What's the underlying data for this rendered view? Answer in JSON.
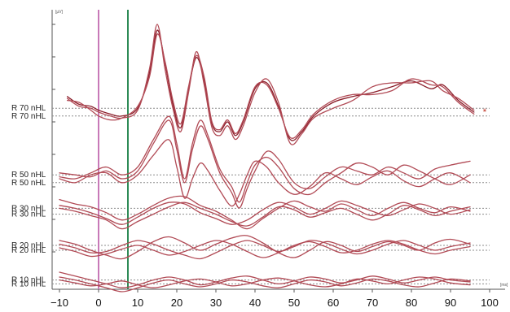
{
  "chart_data": {
    "type": "line",
    "title": "",
    "xlabel": "",
    "ylabel": "",
    "x_unit": "[ms]",
    "y_unit": "[µV]",
    "xlim": [
      -10,
      100
    ],
    "x_ticks": [
      -10,
      0,
      10,
      20,
      30,
      40,
      50,
      60,
      70,
      80,
      90,
      100
    ],
    "markers": [
      {
        "x": 0,
        "color": "#c879b8"
      },
      {
        "x": 7.5,
        "color": "#2e8b57"
      }
    ],
    "colors": {
      "trace": "#b14a55",
      "trace_dark": "#8b1e2a",
      "baseline": "#8c8c8c",
      "axis": "#555555",
      "end_marker": "#c0392b"
    },
    "end_marker": {
      "x": 100,
      "symbol": "*"
    },
    "groups": [
      {
        "labels": [
          "R 70 nHL",
          "R 70 nHL"
        ],
        "baseline_levels": [
          0.2,
          -0.2
        ],
        "series": [
          {
            "x": [
              -8,
              -5,
              -2,
              0,
              3,
              6,
              10,
              13,
              15,
              17,
              19,
              21,
              23,
              25,
              27,
              29,
              31,
              33,
              35,
              37,
              40,
              43,
              46,
              49,
              52,
              55,
              60,
              65,
              70,
              75,
              80,
              85,
              88,
              92,
              96
            ],
            "y": [
              0.8,
              0.4,
              0.3,
              0.1,
              -0.1,
              -0.2,
              0.2,
              2.0,
              4.2,
              2.5,
              0.4,
              -0.8,
              1.2,
              2.8,
              1.6,
              -0.6,
              -1.0,
              -0.5,
              -1.2,
              -0.5,
              1.2,
              1.5,
              0.3,
              -1.4,
              -1.0,
              -0.2,
              0.5,
              0.8,
              1.0,
              1.3,
              1.6,
              1.2,
              1.4,
              0.6,
              0.0
            ]
          },
          {
            "x": [
              -8,
              -5,
              -2,
              0,
              3,
              6,
              10,
              13,
              15,
              17,
              19,
              21,
              23,
              25,
              27,
              29,
              31,
              33,
              35,
              37,
              40,
              43,
              46,
              49,
              52,
              55,
              60,
              65,
              70,
              75,
              80,
              85,
              88,
              92,
              96
            ],
            "y": [
              0.7,
              0.3,
              0.2,
              0.0,
              -0.2,
              -0.3,
              0.1,
              2.2,
              4.5,
              2.2,
              0.2,
              -1.0,
              1.0,
              3.1,
              1.4,
              -0.8,
              -1.2,
              -0.7,
              -1.4,
              -0.7,
              1.0,
              1.7,
              0.5,
              -1.6,
              -1.1,
              -0.3,
              0.2,
              0.6,
              1.3,
              1.5,
              1.5,
              1.6,
              1.1,
              0.7,
              0.1
            ]
          },
          {
            "x": [
              -8,
              -5,
              -2,
              0,
              3,
              6,
              10,
              13,
              15,
              17,
              19,
              21,
              23,
              25,
              27,
              29,
              31,
              33,
              35,
              37,
              40,
              43,
              46,
              49,
              52,
              55,
              60,
              65,
              70,
              75,
              80,
              85,
              88,
              92,
              96
            ],
            "y": [
              0.6,
              0.5,
              0.1,
              -0.2,
              -0.4,
              -0.3,
              0.3,
              1.8,
              4.0,
              2.6,
              0.6,
              -0.6,
              1.3,
              2.9,
              1.8,
              -0.5,
              -0.9,
              -0.4,
              -1.1,
              -0.4,
              1.3,
              1.4,
              0.2,
              -1.3,
              -0.9,
              -0.1,
              0.6,
              0.9,
              0.9,
              1.1,
              1.7,
              1.4,
              1.3,
              0.5,
              -0.1
            ]
          }
        ]
      },
      {
        "labels": [
          "R 50 nHL",
          "R 50 nHL"
        ],
        "baseline_levels": [
          0.2,
          -0.2
        ],
        "series": [
          {
            "x": [
              -10,
              -6,
              -2,
              2,
              6,
              10,
              14,
              18,
              20,
              22,
              24,
              26,
              28,
              31,
              34,
              36,
              38,
              40,
              43,
              46,
              50,
              54,
              58,
              62,
              66,
              70,
              74,
              78,
              82,
              86,
              90,
              95
            ],
            "y": [
              0.1,
              0.0,
              0.3,
              0.6,
              0.2,
              0.6,
              2.0,
              3.2,
              1.8,
              0.0,
              1.8,
              3.0,
              2.2,
              0.5,
              -0.4,
              -1.2,
              -0.2,
              0.7,
              1.1,
              0.6,
              -0.5,
              -0.8,
              -0.2,
              0.3,
              0.8,
              0.6,
              0.2,
              0.7,
              0.4,
              0.0,
              -0.3,
              0.2
            ]
          },
          {
            "x": [
              -10,
              -6,
              -2,
              2,
              6,
              10,
              14,
              18,
              20,
              22,
              24,
              26,
              28,
              31,
              34,
              36,
              38,
              40,
              43,
              46,
              50,
              54,
              58,
              62,
              66,
              70,
              74,
              78,
              82,
              86,
              90,
              95
            ],
            "y": [
              0.3,
              0.2,
              0.1,
              0.4,
              0.0,
              0.4,
              1.8,
              3.0,
              1.5,
              -0.2,
              1.5,
              2.7,
              2.0,
              0.3,
              -0.7,
              -1.5,
              -0.5,
              0.4,
              1.4,
              1.0,
              -0.2,
              -0.5,
              0.1,
              0.6,
              0.4,
              0.2,
              0.6,
              0.3,
              0.0,
              0.5,
              0.7,
              0.9
            ]
          },
          {
            "x": [
              -10,
              -6,
              -2,
              2,
              6,
              10,
              14,
              18,
              20,
              22,
              24,
              26,
              28,
              31,
              34,
              36,
              38,
              40,
              43,
              46,
              50,
              54,
              58,
              62,
              66,
              70,
              74,
              78,
              82,
              86,
              90,
              95
            ],
            "y": [
              0.0,
              -0.2,
              0.2,
              0.3,
              -0.2,
              0.2,
              1.2,
              2.0,
              0.6,
              -1.0,
              0.0,
              0.8,
              0.4,
              -0.6,
              -1.4,
              -0.8,
              0.2,
              0.9,
              0.6,
              -0.2,
              -0.8,
              -0.4,
              0.3,
              0.0,
              -0.3,
              0.1,
              0.4,
              -0.1,
              -0.4,
              0.0,
              0.3,
              -0.2
            ]
          }
        ]
      },
      {
        "labels": [
          "R 30 nHL",
          "R 30 nHL"
        ],
        "baseline_levels": [
          0.2,
          -0.2
        ],
        "series": [
          {
            "x": [
              -10,
              -6,
              -2,
              2,
              6,
              10,
              14,
              18,
              22,
              26,
              30,
              34,
              38,
              42,
              46,
              50,
              54,
              58,
              62,
              66,
              70,
              74,
              78,
              82,
              86,
              90,
              95
            ],
            "y": [
              0.8,
              0.5,
              0.3,
              -0.1,
              -0.6,
              -0.2,
              0.4,
              0.9,
              1.0,
              0.4,
              0.0,
              -0.6,
              -1.2,
              -0.5,
              0.2,
              0.7,
              0.3,
              0.0,
              0.5,
              0.1,
              -0.3,
              0.2,
              0.6,
              0.2,
              -0.1,
              0.3,
              0.0
            ]
          },
          {
            "x": [
              -10,
              -6,
              -2,
              2,
              6,
              10,
              14,
              18,
              22,
              26,
              30,
              34,
              38,
              42,
              46,
              50,
              54,
              58,
              62,
              66,
              70,
              74,
              78,
              82,
              86,
              90,
              95
            ],
            "y": [
              0.4,
              0.2,
              -0.1,
              -0.5,
              -0.9,
              -0.4,
              0.2,
              0.6,
              0.5,
              -0.1,
              -0.5,
              -0.9,
              -0.6,
              0.1,
              0.6,
              0.3,
              -0.2,
              0.2,
              0.7,
              0.4,
              0.0,
              -0.3,
              0.1,
              0.5,
              0.2,
              -0.2,
              0.1
            ]
          },
          {
            "x": [
              -10,
              -6,
              -2,
              2,
              6,
              10,
              14,
              18,
              22,
              26,
              30,
              34,
              38,
              42,
              46,
              50,
              54,
              58,
              62,
              66,
              70,
              74,
              78,
              82,
              86,
              90,
              95
            ],
            "y": [
              0.2,
              0.0,
              -0.3,
              -0.6,
              -1.2,
              -0.7,
              -0.2,
              0.3,
              0.6,
              0.2,
              -0.2,
              -0.7,
              -1.0,
              -0.4,
              0.3,
              0.1,
              -0.4,
              -0.1,
              0.2,
              -0.2,
              -0.6,
              -0.2,
              0.4,
              0.1,
              -0.3,
              0.0,
              0.3
            ]
          }
        ]
      },
      {
        "labels": [
          "R 20 nHL",
          "R 20 nHL"
        ],
        "baseline_levels": [
          0.2,
          -0.2
        ],
        "series": [
          {
            "x": [
              -10,
              -6,
              -2,
              2,
              6,
              10,
              14,
              18,
              22,
              26,
              30,
              34,
              38,
              42,
              46,
              50,
              54,
              58,
              62,
              66,
              70,
              74,
              78,
              82,
              86,
              90,
              95
            ],
            "y": [
              0.6,
              0.3,
              -0.2,
              -0.6,
              -0.9,
              -0.3,
              0.5,
              0.9,
              0.4,
              -0.2,
              0.3,
              0.8,
              1.0,
              0.4,
              -0.4,
              -0.8,
              -0.2,
              0.5,
              0.2,
              -0.3,
              0.1,
              0.5,
              0.2,
              -0.2,
              0.4,
              0.7,
              0.3
            ]
          },
          {
            "x": [
              -10,
              -6,
              -2,
              2,
              6,
              10,
              14,
              18,
              22,
              26,
              30,
              34,
              38,
              42,
              46,
              50,
              54,
              58,
              62,
              66,
              70,
              74,
              78,
              82,
              86,
              90,
              95
            ],
            "y": [
              0.3,
              0.0,
              -0.4,
              -0.3,
              0.2,
              0.6,
              0.3,
              -0.2,
              -0.6,
              -0.9,
              -0.4,
              0.2,
              0.6,
              0.2,
              -0.3,
              0.1,
              0.6,
              0.4,
              -0.1,
              -0.5,
              -0.2,
              0.3,
              0.6,
              0.2,
              -0.2,
              0.1,
              0.4
            ]
          },
          {
            "x": [
              -10,
              -6,
              -2,
              2,
              6,
              10,
              14,
              18,
              22,
              26,
              30,
              34,
              38,
              42,
              46,
              50,
              54,
              58,
              62,
              66,
              70,
              74,
              78,
              82,
              86,
              90,
              95
            ],
            "y": [
              0.0,
              -0.3,
              -0.7,
              -0.5,
              -0.1,
              0.2,
              -0.2,
              -0.6,
              -0.3,
              0.2,
              0.6,
              0.3,
              -0.3,
              -0.8,
              -0.4,
              0.2,
              0.5,
              0.1,
              -0.4,
              -0.2,
              0.3,
              0.6,
              0.3,
              -0.2,
              -0.5,
              -0.2,
              0.1
            ]
          }
        ]
      },
      {
        "labels": [
          "R 10 nHL",
          "R 10 nHL"
        ],
        "baseline_levels": [
          0.2,
          -0.2
        ],
        "series": [
          {
            "x": [
              -10,
              -6,
              -2,
              2,
              6,
              10,
              14,
              18,
              22,
              26,
              30,
              34,
              38,
              42,
              46,
              50,
              54,
              58,
              62,
              66,
              70,
              74,
              78,
              82,
              86,
              90,
              95
            ],
            "y": [
              1.0,
              0.6,
              0.2,
              -0.2,
              -0.6,
              -0.3,
              0.2,
              0.5,
              0.2,
              -0.3,
              0.0,
              0.4,
              0.6,
              0.2,
              -0.2,
              0.1,
              0.5,
              0.3,
              -0.1,
              0.2,
              0.6,
              0.3,
              -0.1,
              0.2,
              0.5,
              0.2,
              0.0
            ]
          },
          {
            "x": [
              -10,
              -6,
              -2,
              2,
              6,
              10,
              14,
              18,
              22,
              26,
              30,
              34,
              38,
              42,
              46,
              50,
              54,
              58,
              62,
              66,
              70,
              74,
              78,
              82,
              86,
              90,
              95
            ],
            "y": [
              0.5,
              0.2,
              -0.2,
              -0.6,
              -1.0,
              -0.6,
              -0.1,
              0.2,
              -0.2,
              -0.5,
              -0.2,
              0.2,
              0.0,
              -0.4,
              -0.6,
              -0.2,
              0.2,
              0.0,
              -0.4,
              -0.1,
              0.3,
              0.1,
              -0.3,
              -0.5,
              -0.1,
              0.3,
              0.1
            ]
          },
          {
            "x": [
              -10,
              -6,
              -2,
              2,
              6,
              10,
              14,
              18,
              22,
              26,
              30,
              34,
              38,
              42,
              46,
              50,
              54,
              58,
              62,
              66,
              70,
              74,
              78,
              82,
              86,
              90,
              95
            ],
            "y": [
              0.2,
              -0.1,
              -0.4,
              -0.2,
              0.1,
              -0.3,
              -0.6,
              -0.3,
              0.1,
              0.3,
              0.0,
              -0.4,
              -0.2,
              0.2,
              0.4,
              0.1,
              -0.3,
              -0.5,
              -0.2,
              0.3,
              0.1,
              -0.2,
              0.2,
              0.5,
              0.3,
              -0.1,
              -0.3
            ]
          }
        ]
      }
    ]
  }
}
